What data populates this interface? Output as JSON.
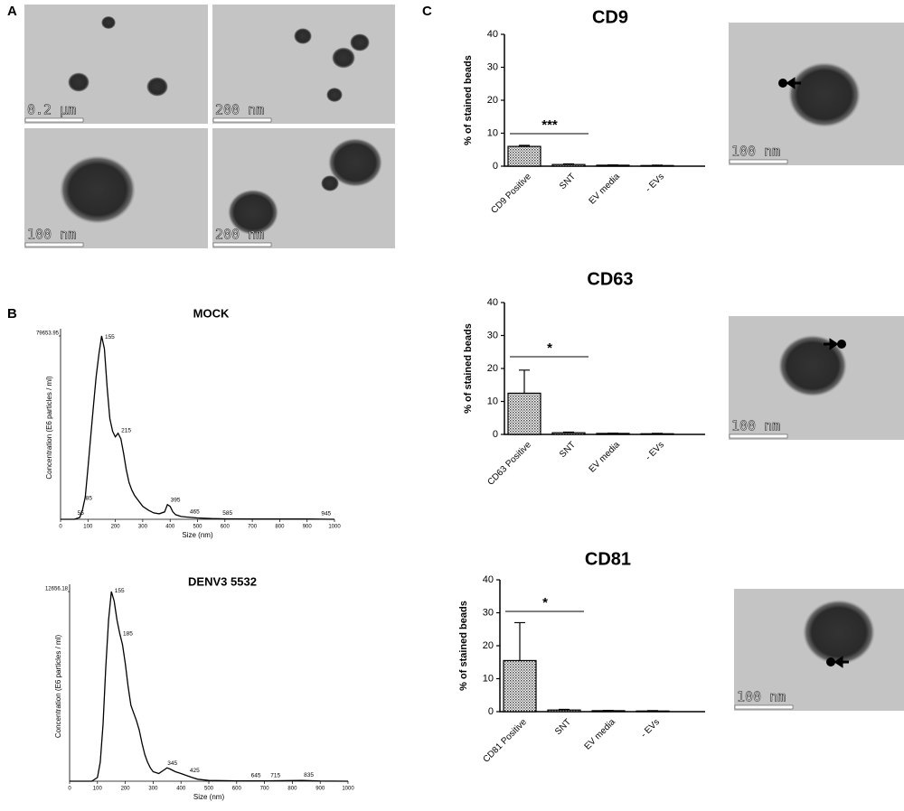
{
  "panels": [
    "A",
    "B",
    "C"
  ],
  "scale_bars": [
    "0.2 µm",
    "200 nm",
    "100 nm",
    "200 nm",
    "100 nm",
    "100 nm",
    "100 nm"
  ],
  "chart_data": [
    {
      "type": "line",
      "title": "MOCK",
      "xlabel": "Size (nm)",
      "ylabel": "Concentration (E6 particles / ml)",
      "x": [
        0,
        50,
        70,
        80,
        90,
        100,
        110,
        120,
        130,
        140,
        150,
        160,
        170,
        180,
        190,
        200,
        210,
        220,
        230,
        240,
        250,
        260,
        270,
        280,
        290,
        300,
        320,
        340,
        360,
        380,
        390,
        400,
        410,
        420,
        440,
        460,
        480,
        500,
        550,
        600,
        700,
        800,
        900,
        1000
      ],
      "values": [
        0,
        0,
        800,
        4000,
        9600,
        22300,
        35800,
        49400,
        62100,
        71700,
        79654,
        74100,
        57400,
        43800,
        38200,
        35800,
        37400,
        35000,
        28700,
        21500,
        15900,
        12700,
        10400,
        8800,
        7200,
        5600,
        4000,
        2800,
        2400,
        3200,
        6400,
        5600,
        3200,
        2000,
        1200,
        1000,
        800,
        600,
        300,
        200,
        100,
        100,
        100,
        0
      ],
      "color": "#000000",
      "peak_color": "#2233ee",
      "peaks": [
        55,
        85,
        155,
        215,
        395,
        465,
        585,
        945
      ],
      "xlim": [
        0,
        1000
      ],
      "xticks": [
        0,
        100,
        200,
        300,
        400,
        500,
        600,
        700,
        800,
        900,
        1000
      ],
      "ylim": [
        0,
        79653.95
      ],
      "yticks": [
        79653.95
      ]
    },
    {
      "type": "line",
      "title": "DENV3 5532",
      "xlabel": "Size (nm)",
      "ylabel": "Concentration (E6 particles / ml)",
      "x": [
        0,
        80,
        100,
        110,
        120,
        130,
        140,
        150,
        160,
        170,
        180,
        190,
        200,
        210,
        220,
        230,
        240,
        250,
        260,
        270,
        280,
        290,
        300,
        320,
        340,
        350,
        360,
        380,
        400,
        420,
        440,
        460,
        500,
        600,
        700,
        835,
        900,
        1000
      ],
      "values": [
        0,
        0,
        250,
        1270,
        3800,
        7590,
        10760,
        12656,
        12020,
        10760,
        9870,
        9110,
        7850,
        6330,
        5060,
        4560,
        4050,
        3420,
        2530,
        1770,
        1270,
        890,
        630,
        510,
        760,
        890,
        820,
        630,
        510,
        380,
        250,
        130,
        50,
        25,
        25,
        50,
        13,
        0
      ],
      "color": "#000000",
      "peak_color": "#2233ee",
      "peaks": [
        155,
        185,
        345,
        425,
        645,
        715,
        835
      ],
      "xlim": [
        0,
        1000
      ],
      "xticks": [
        0,
        100,
        200,
        300,
        400,
        500,
        600,
        700,
        800,
        900,
        1000
      ],
      "ylim": [
        0,
        12656.18
      ],
      "yticks": [
        12656.18
      ]
    },
    {
      "type": "bar",
      "title": "CD9",
      "ylabel": "% of stained beads",
      "categories": [
        "CD9 Positive",
        "SNT",
        "EV media",
        "- EVs"
      ],
      "values": [
        6,
        0.5,
        0.3,
        0.2
      ],
      "errors": [
        0.3,
        0.2,
        0.1,
        0.1
      ],
      "annotation": "***",
      "ylim": [
        0,
        40
      ],
      "yticks": [
        0,
        10,
        20,
        30,
        40
      ]
    },
    {
      "type": "bar",
      "title": "CD63",
      "ylabel": "% of stained beads",
      "categories": [
        "CD63 Positive",
        "SNT",
        "EV media",
        "- EVs"
      ],
      "values": [
        12.5,
        0.5,
        0.3,
        0.2
      ],
      "errors": [
        7,
        0.2,
        0.1,
        0.1
      ],
      "annotation": "*",
      "ylim": [
        0,
        40
      ],
      "yticks": [
        0,
        10,
        20,
        30,
        40
      ]
    },
    {
      "type": "bar",
      "title": "CD81",
      "ylabel": "% of stained beads",
      "categories": [
        "CD81 Positive",
        "SNT",
        "EV media",
        "- EVs"
      ],
      "values": [
        15.5,
        0.5,
        0.3,
        0.2
      ],
      "errors": [
        11.5,
        0.2,
        0.1,
        0.1
      ],
      "annotation": "*",
      "ylim": [
        0,
        40
      ],
      "yticks": [
        0,
        10,
        20,
        30,
        40
      ]
    }
  ]
}
